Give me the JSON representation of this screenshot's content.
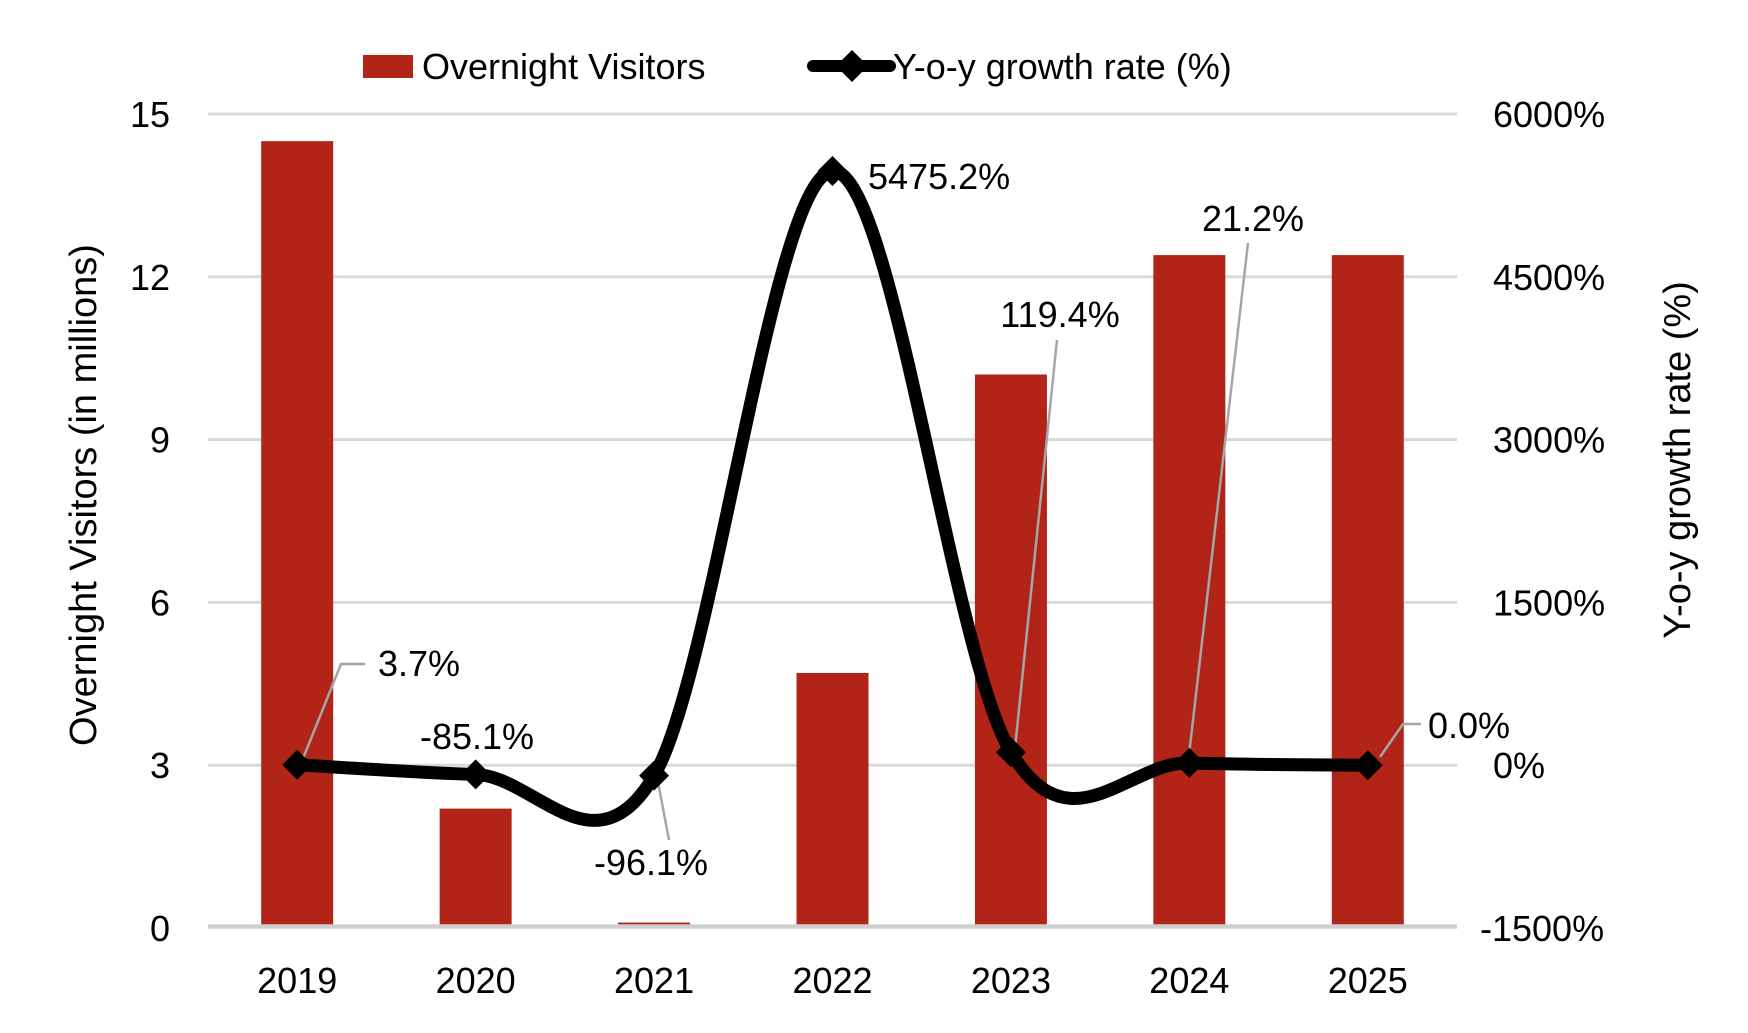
{
  "chart_data": {
    "type": "combo-bar-line",
    "categories": [
      "2019",
      "2020",
      "2021",
      "2022",
      "2023",
      "2024",
      "2025"
    ],
    "series": [
      {
        "name": "Overnight Visitors",
        "type": "bar",
        "axis": "left",
        "color": "#B22318",
        "values": [
          14.5,
          2.2,
          0.1,
          4.7,
          10.2,
          12.4,
          12.4
        ]
      },
      {
        "name": "Y-o-y growth rate (%)",
        "type": "line",
        "axis": "right",
        "color": "#000000",
        "values": [
          3.7,
          -85.1,
          -96.1,
          5475.2,
          119.4,
          21.2,
          0.0
        ],
        "point_labels": [
          "3.7%",
          "-85.1%",
          "-96.1%",
          "5475.2%",
          "119.4%",
          "21.2%",
          "0.0%"
        ]
      }
    ],
    "left_axis": {
      "title": "Overnight Visitors (in millions)",
      "min": 0,
      "max": 15,
      "step": 3,
      "ticks": [
        "0",
        "3",
        "6",
        "9",
        "12",
        "15"
      ]
    },
    "right_axis": {
      "title": "Y-o-y growth rate (%)",
      "min": -1500,
      "max": 6000,
      "step": 1500,
      "ticks": [
        "-1500%",
        "0%",
        "1500%",
        "3000%",
        "4500%",
        "6000%"
      ]
    },
    "grid": true,
    "legend_position": "top-center"
  },
  "colors": {
    "bar": "#B22318",
    "line": "#000000",
    "gridline": "#D9D9D9",
    "axis_line": "#CFCFCF",
    "leader": "#A6A6A6",
    "text": "#000000",
    "background": "#FFFFFF"
  }
}
